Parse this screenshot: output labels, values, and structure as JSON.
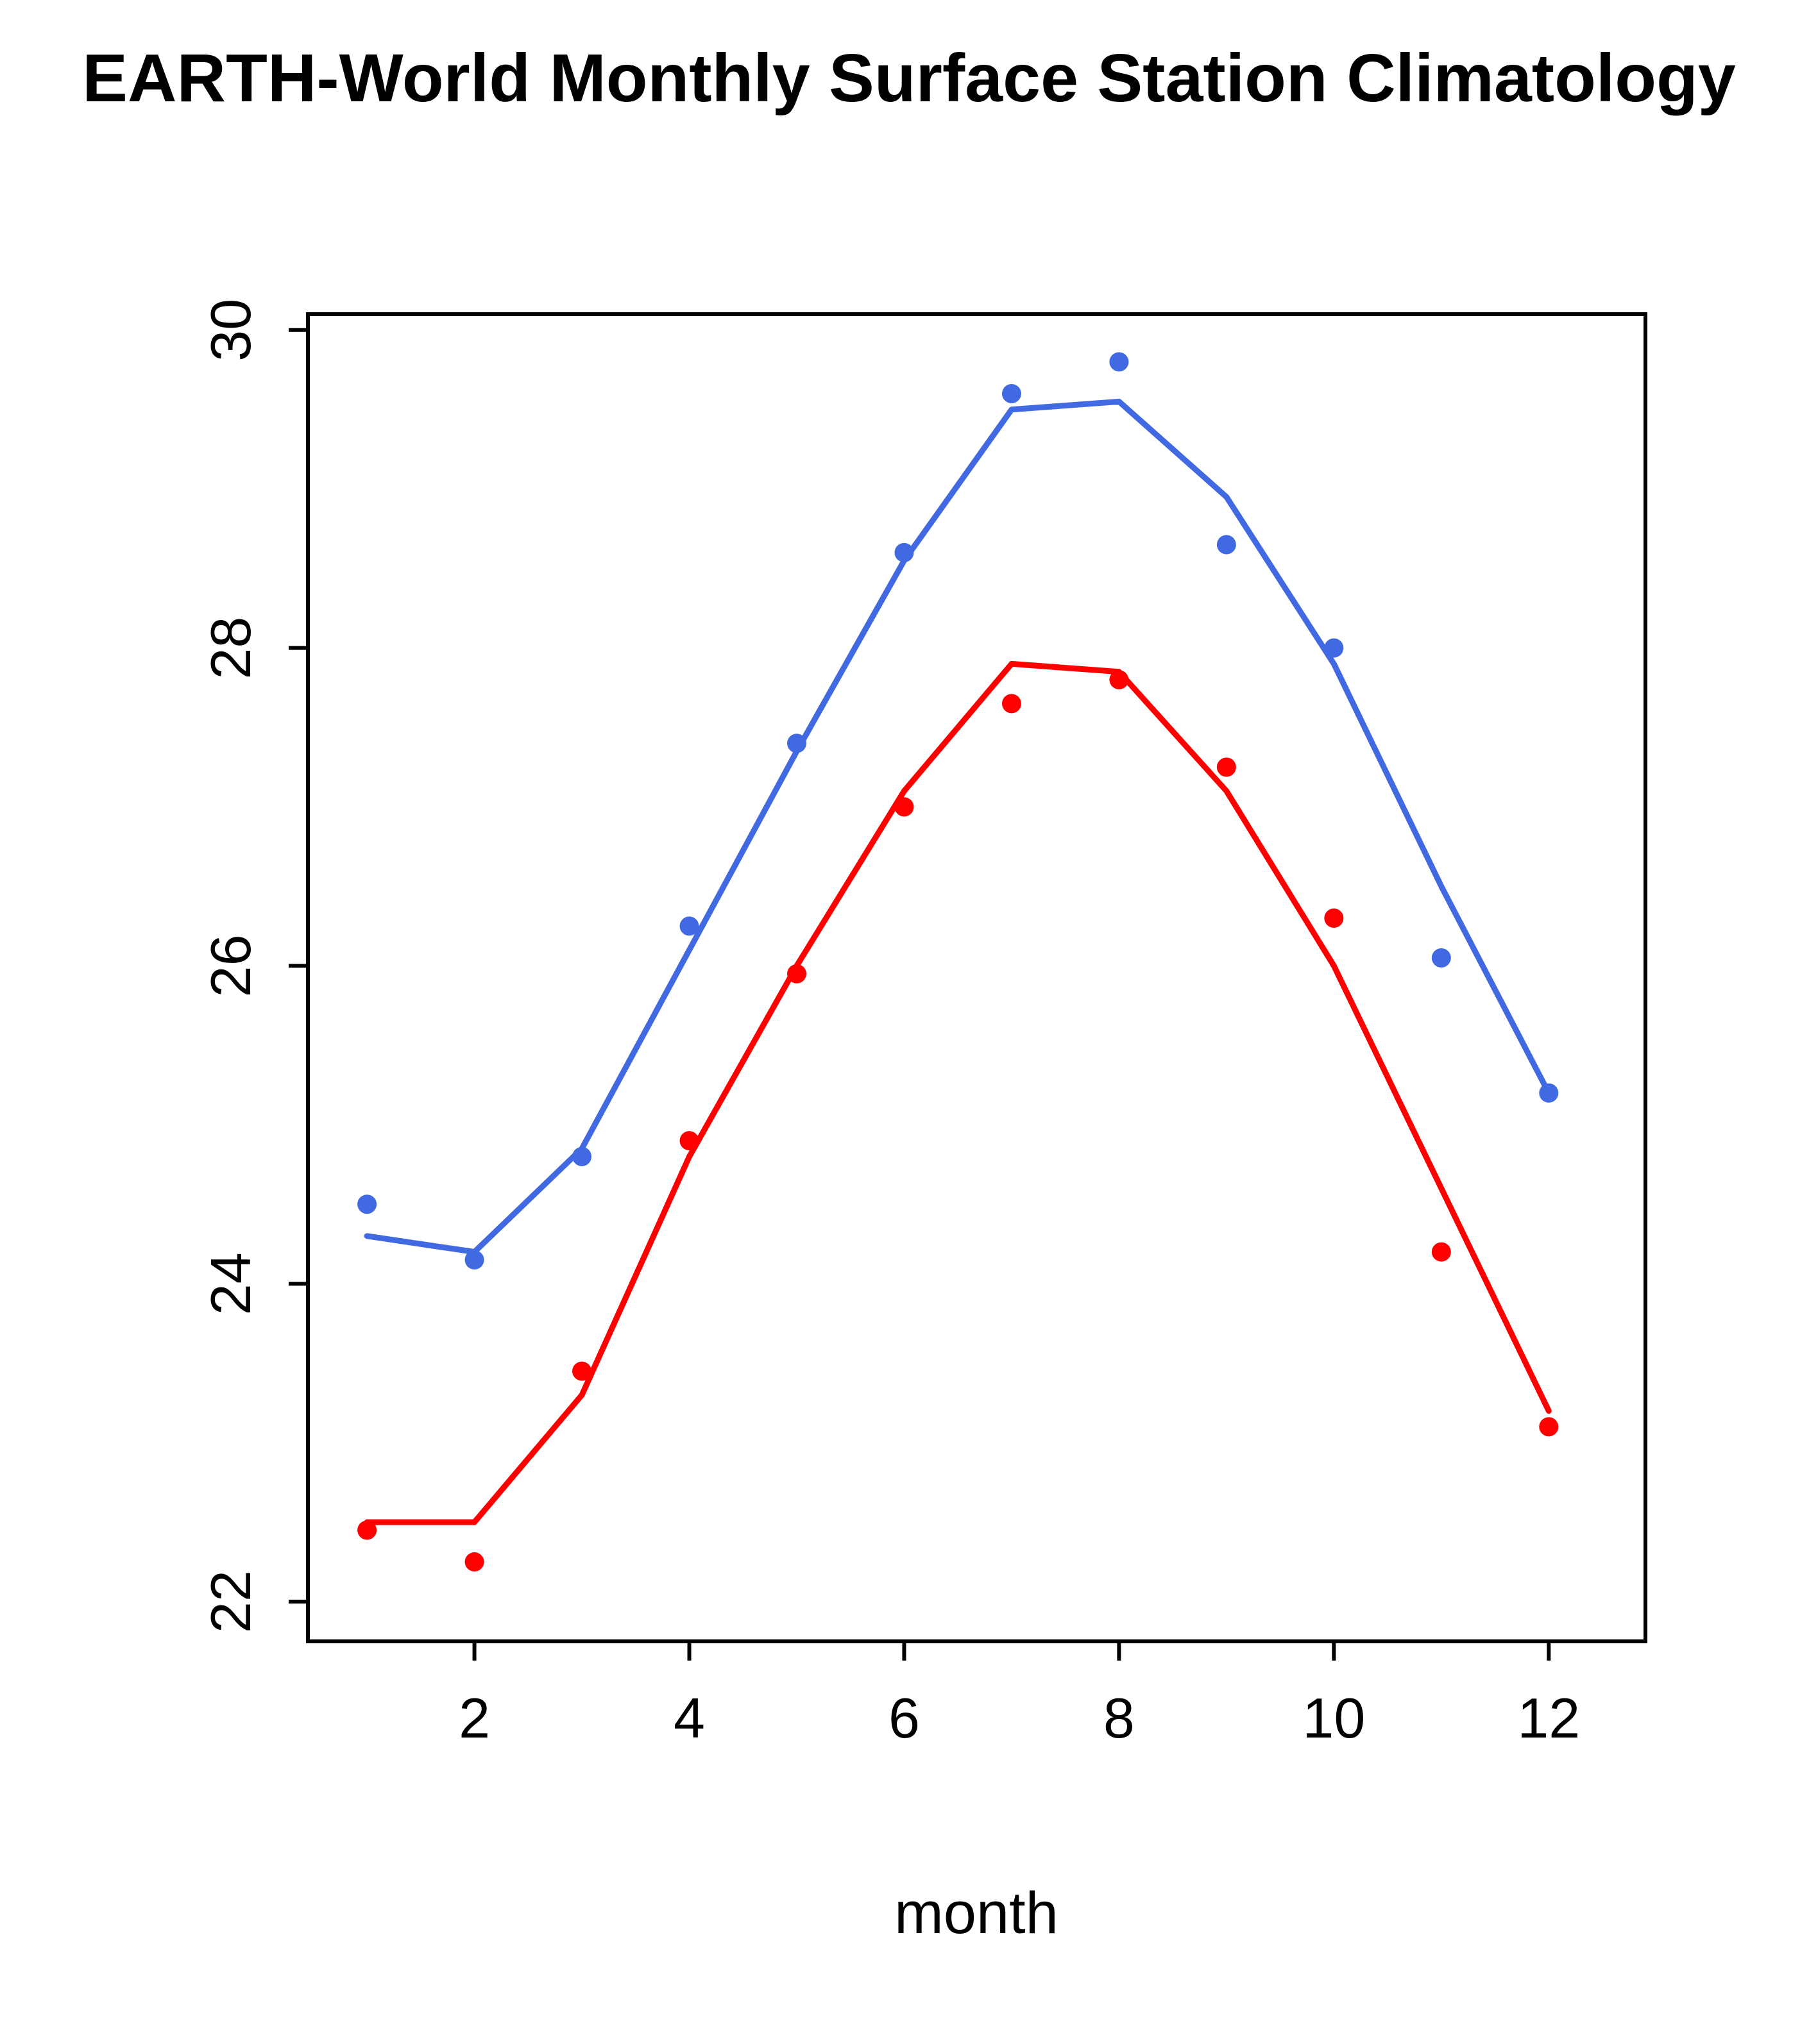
{
  "chart_data": {
    "type": "line",
    "title": "EARTH-World Monthly Surface Station Climatology",
    "xlabel": "month",
    "ylabel": "",
    "x": [
      1,
      2,
      3,
      4,
      5,
      6,
      7,
      8,
      9,
      10,
      11,
      12
    ],
    "xticks": [
      2,
      4,
      6,
      8,
      10,
      12
    ],
    "yticks": [
      22,
      24,
      26,
      28,
      30
    ],
    "xlim": [
      0.45,
      12.9
    ],
    "ylim": [
      21.75,
      30.1
    ],
    "grid": false,
    "legend": "none",
    "series": [
      {
        "name": "blue-series",
        "color": "#4169E1",
        "points": [
          24.5,
          24.15,
          24.8,
          26.25,
          27.4,
          28.6,
          29.6,
          29.8,
          28.65,
          28.0,
          26.05,
          25.2
        ],
        "line": [
          24.3,
          24.2,
          24.85,
          26.1,
          27.35,
          28.55,
          29.5,
          29.55,
          28.95,
          27.9,
          26.5,
          25.2
        ]
      },
      {
        "name": "red-series",
        "color": "#FF0000",
        "points": [
          22.45,
          22.25,
          23.45,
          24.9,
          25.95,
          27.0,
          27.65,
          27.8,
          27.25,
          26.3,
          24.2,
          23.1
        ],
        "line": [
          22.5,
          22.5,
          23.3,
          24.8,
          26.0,
          27.1,
          27.9,
          27.85,
          27.1,
          26.0,
          24.6,
          23.2
        ]
      }
    ]
  }
}
